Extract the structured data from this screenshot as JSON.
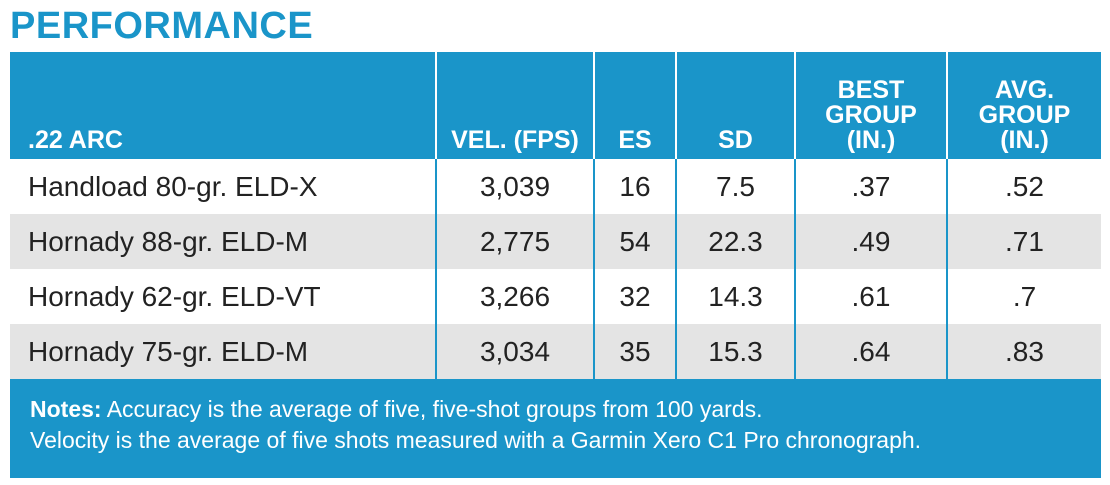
{
  "title": "PERFORMANCE",
  "table": {
    "headers": [
      ".22 ARC",
      "VEL. (FPS)",
      "ES",
      "SD",
      "BEST\nGROUP\n(IN.)",
      "AVG.\nGROUP\n(IN.)"
    ],
    "header_lines": {
      "best": [
        "BEST",
        "GROUP",
        "(IN.)"
      ],
      "avg": [
        "AVG.",
        "GROUP",
        "(IN.)"
      ]
    },
    "rows": [
      [
        "Handload 80-gr. ELD-X",
        "3,039",
        "16",
        "7.5",
        ".37",
        ".52"
      ],
      [
        "Hornady 88-gr. ELD-M",
        "2,775",
        "54",
        "22.3",
        ".49",
        ".71"
      ],
      [
        "Hornady 62-gr. ELD-VT",
        "3,266",
        "32",
        "14.3",
        ".61",
        ".7"
      ],
      [
        "Hornady 75-gr. ELD-M",
        "3,034",
        "35",
        "15.3",
        ".64",
        ".83"
      ]
    ]
  },
  "notes": {
    "label": "Notes:",
    "line1": "Accuracy is the average of five, five-shot groups from 100 yards.",
    "line2": "Velocity is the average of five shots measured with a Garmin Xero C1 Pro chronograph."
  },
  "colors": {
    "accent": "#1a95c9",
    "stripe": "#e4e4e4",
    "text": "#222222"
  }
}
